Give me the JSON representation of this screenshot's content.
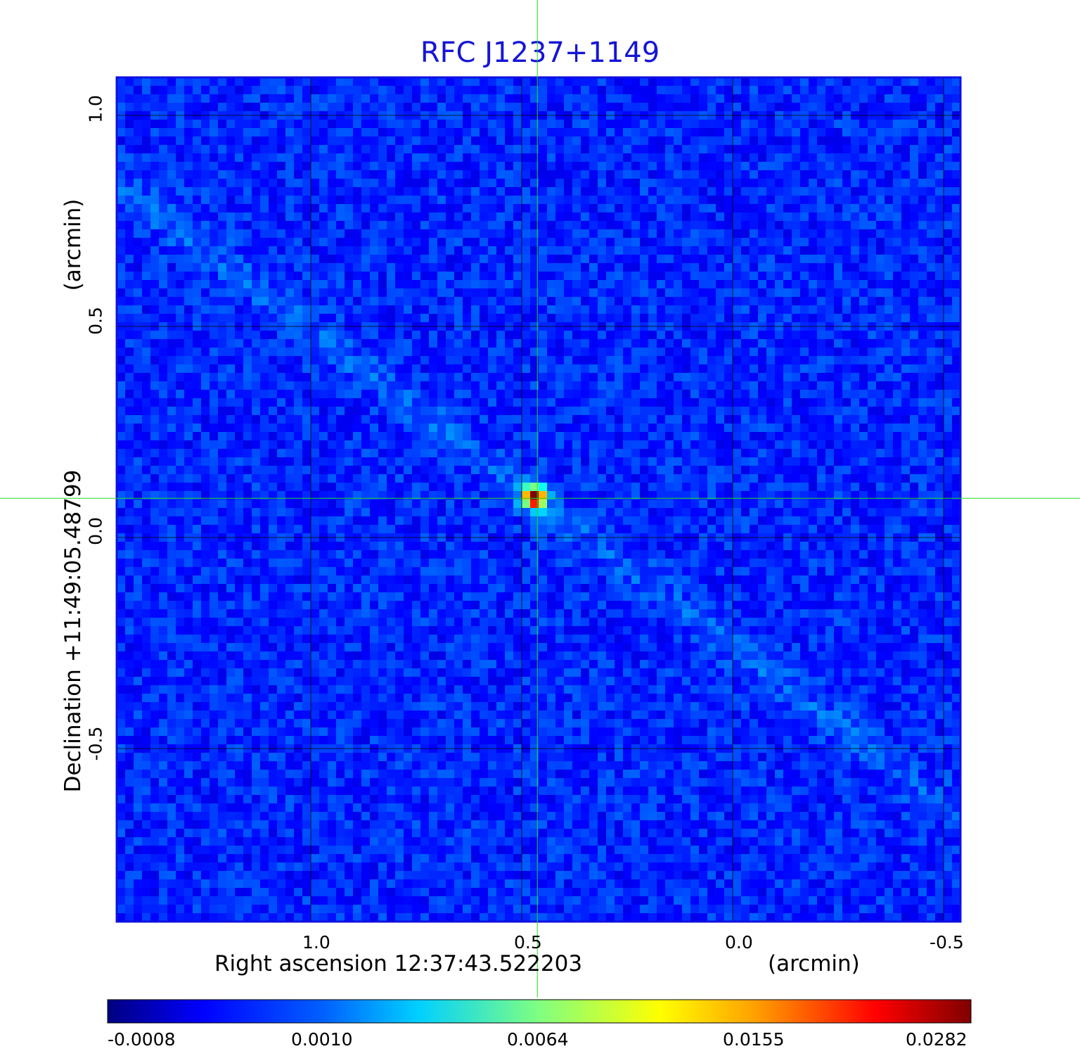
{
  "chart_data": {
    "type": "heatmap",
    "title": "RFC J1237+1149",
    "xlabel": "Right ascension  12:37:43.522203",
    "xunit": "(arcmin)",
    "ylabel": "Declination  +11:49:05.48799",
    "yunit": "(arcmin)",
    "xlim": [
      1.46,
      -0.54
    ],
    "ylim": [
      -0.91,
      1.09
    ],
    "x_ticks": [
      "1.0",
      "0.5",
      "0.0",
      "-0.5"
    ],
    "x_tick_values": [
      1.0,
      0.5,
      0.0,
      -0.5
    ],
    "y_ticks": [
      "1.0",
      "0.5",
      "0.0",
      "-0.5"
    ],
    "y_tick_values": [
      1.0,
      0.5,
      0.0,
      -0.5
    ],
    "grid": true,
    "crosshair": {
      "x": 0.463,
      "y": 0.093
    },
    "source": {
      "x": 0.47,
      "y": 0.095,
      "peak": 0.0282
    },
    "colormap": "jet",
    "colorbar_ticks": [
      "-0.0008",
      "0.0010",
      "0.0064",
      "0.0155",
      "0.0282"
    ],
    "colorbar_position": "bottom"
  },
  "colors": {
    "title": "#1515d6",
    "frame": "#1010e0",
    "grid": "#000000",
    "crosshair": "#22dd22"
  }
}
